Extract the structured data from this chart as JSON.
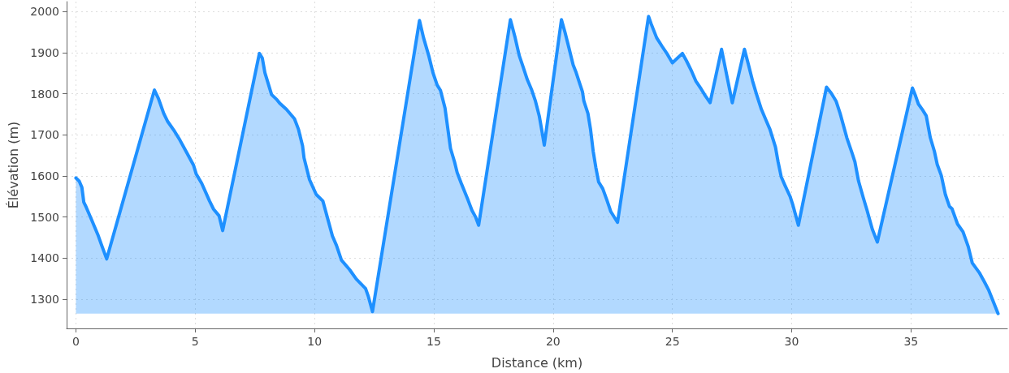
{
  "chart_data": {
    "type": "area",
    "xlabel": "Distance (km)",
    "ylabel": "Élévation (m)",
    "x": [
      0,
      0.14,
      0.25,
      0.33,
      0.43,
      0.66,
      0.92,
      1.08,
      1.29,
      3.29,
      3.46,
      3.68,
      3.85,
      4.14,
      4.36,
      4.64,
      4.93,
      5.04,
      5.27,
      5.6,
      5.77,
      6.0,
      6.15,
      7.69,
      7.81,
      7.92,
      8.2,
      8.43,
      8.54,
      8.82,
      9.16,
      9.33,
      9.5,
      9.56,
      9.79,
      10.07,
      10.35,
      10.52,
      10.75,
      10.92,
      11.13,
      11.47,
      11.75,
      12.14,
      12.26,
      12.43,
      14.4,
      14.57,
      14.8,
      14.97,
      15.14,
      15.28,
      15.47,
      15.7,
      15.87,
      15.98,
      16.15,
      16.43,
      16.6,
      16.75,
      16.88,
      18.21,
      18.41,
      18.58,
      18.75,
      18.92,
      19.09,
      19.26,
      19.42,
      19.54,
      19.63,
      20.35,
      20.5,
      20.67,
      20.84,
      20.95,
      21.12,
      21.23,
      21.29,
      21.46,
      21.57,
      21.68,
      21.79,
      21.91,
      22.08,
      22.25,
      22.42,
      22.7,
      24.0,
      24.11,
      24.34,
      24.57,
      24.79,
      25.0,
      25.42,
      25.59,
      25.81,
      25.98,
      26.21,
      26.38,
      26.58,
      27.06,
      27.51,
      28.02,
      28.19,
      28.36,
      28.53,
      28.73,
      28.92,
      29.09,
      29.32,
      29.43,
      29.56,
      29.71,
      29.94,
      30.05,
      30.28,
      31.46,
      31.66,
      31.86,
      32.03,
      32.31,
      32.54,
      32.65,
      32.8,
      32.99,
      33.16,
      33.38,
      33.59,
      35.06,
      35.19,
      35.31,
      35.47,
      35.64,
      35.81,
      35.98,
      36.1,
      36.27,
      36.44,
      36.61,
      36.72,
      36.95,
      37.18,
      37.4,
      37.57,
      37.86,
      38.08,
      38.25,
      38.65
    ],
    "series": [
      {
        "color": "#1e90ff",
        "values": [
          1595,
          1587,
          1572,
          1536,
          1524,
          1493,
          1457,
          1431,
          1398,
          1809,
          1788,
          1752,
          1732,
          1708,
          1687,
          1657,
          1626,
          1605,
          1582,
          1539,
          1519,
          1503,
          1467,
          1898,
          1887,
          1851,
          1798,
          1785,
          1777,
          1762,
          1739,
          1713,
          1673,
          1644,
          1591,
          1555,
          1539,
          1503,
          1454,
          1431,
          1395,
          1372,
          1349,
          1326,
          1306,
          1270,
          1978,
          1936,
          1890,
          1850,
          1821,
          1808,
          1765,
          1667,
          1634,
          1608,
          1582,
          1542,
          1516,
          1500,
          1480,
          1980,
          1936,
          1893,
          1864,
          1834,
          1811,
          1782,
          1746,
          1706,
          1675,
          1980,
          1949,
          1910,
          1870,
          1854,
          1824,
          1805,
          1782,
          1752,
          1713,
          1660,
          1621,
          1585,
          1569,
          1542,
          1513,
          1487,
          1988,
          1970,
          1936,
          1915,
          1896,
          1875,
          1898,
          1880,
          1854,
          1831,
          1811,
          1795,
          1778,
          1908,
          1778,
          1908,
          1870,
          1831,
          1798,
          1762,
          1736,
          1713,
          1670,
          1634,
          1598,
          1578,
          1549,
          1529,
          1480,
          1816,
          1801,
          1782,
          1752,
          1693,
          1654,
          1634,
          1588,
          1549,
          1516,
          1470,
          1439,
          1814,
          1795,
          1775,
          1762,
          1746,
          1693,
          1660,
          1628,
          1601,
          1555,
          1526,
          1520,
          1483,
          1464,
          1428,
          1388,
          1365,
          1342,
          1323,
          1265
        ]
      }
    ],
    "xlim": [
      -0.39,
      39.04
    ],
    "ylim": [
      1229,
      2024
    ],
    "xticks": [
      0,
      5,
      10,
      15,
      20,
      25,
      30,
      35
    ],
    "yticks": [
      1300,
      1400,
      1500,
      1600,
      1700,
      1800,
      1900,
      2000
    ],
    "grid": true,
    "marker": "none",
    "line_style": "solid"
  }
}
